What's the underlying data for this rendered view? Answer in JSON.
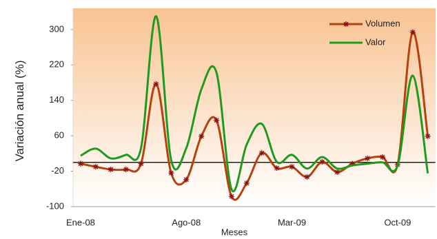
{
  "chart_data": {
    "type": "line",
    "x_label": "Meses",
    "y_label": "Variación anual (%)",
    "categories": [
      "Ene-08",
      null,
      null,
      null,
      null,
      null,
      null,
      "Ago-08",
      null,
      null,
      null,
      null,
      null,
      null,
      "Mar-09",
      null,
      null,
      null,
      null,
      null,
      null,
      "Oct-09",
      null,
      null
    ],
    "series": [
      {
        "name": "Volumen",
        "color": "#b5410d",
        "marker": "asterisk",
        "values": [
          -3,
          -10,
          -16,
          -16,
          -3,
          177,
          -24,
          -39,
          59,
          95,
          -77,
          -47,
          21,
          -13,
          -10,
          -33,
          1,
          -22,
          -3,
          9,
          12,
          -5,
          294,
          59
        ]
      },
      {
        "name": "Valor",
        "color": "#1f9a1f",
        "values": [
          15,
          31,
          9,
          17,
          32,
          330,
          5,
          32,
          165,
          203,
          -61,
          40,
          87,
          1,
          17,
          -14,
          12,
          -14,
          -7,
          -3,
          0,
          -7,
          196,
          -25
        ]
      }
    ],
    "ylim": [
      -100,
      348
    ],
    "yticks": [
      -100,
      -20,
      60,
      140,
      220,
      300
    ],
    "reference_line": 0,
    "legend": "upper right"
  }
}
